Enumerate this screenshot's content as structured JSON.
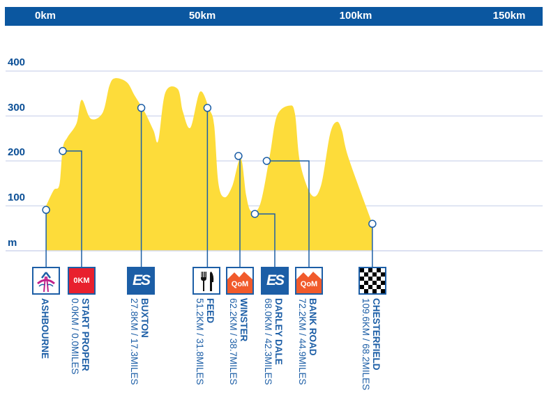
{
  "top_axis": {
    "labels": [
      "0km",
      "50km",
      "100km",
      "150km"
    ],
    "bar_color": "#0b57a0"
  },
  "chart_data": {
    "type": "area",
    "xlabel": "",
    "ylabel": "m",
    "yticks": [
      100,
      200,
      300,
      400
    ],
    "ylim": [
      0,
      420
    ],
    "grid": true,
    "fill_color": "#fddc3a",
    "profile": {
      "distance_km": [
        -5.9,
        -3.2,
        -1.2,
        0,
        1.7,
        4.9,
        6.7,
        9.9,
        14.1,
        16.5,
        18.5,
        22.7,
        25.4,
        28.9,
        32.1,
        33.8,
        36.3,
        40.7,
        42.5,
        45.2,
        48.6,
        51.9,
        53.6,
        55.1,
        57.3,
        60,
        63,
        64.9,
        66.7,
        69.9,
        73.3,
        75.8,
        80.2,
        82.2,
        84,
        88.1,
        91.4,
        94.6,
        97,
        98.8,
        101.2,
        109.6
      ],
      "elevation_m": [
        100,
        135,
        147,
        228,
        253,
        284,
        336,
        294,
        307,
        367,
        384,
        375,
        346,
        310,
        268,
        245,
        352,
        360,
        310,
        274,
        354,
        315,
        279,
        150,
        119,
        144,
        206,
        124,
        88,
        104,
        212,
        300,
        323,
        305,
        196,
        124,
        145,
        259,
        287,
        268,
        206,
        60
      ]
    },
    "waypoints": [
      {
        "name": "ASHBOURNE",
        "detail": "",
        "icon": "ashbourne-logo-icon",
        "km": -5.9,
        "elevation_m": 91
      },
      {
        "name": "START PROPER",
        "detail": "0.0KM / 0.0MILES",
        "icon": "start-0km-icon",
        "icon_text": "0KM",
        "km": 0,
        "elevation_m": 222
      },
      {
        "name": "BUXTON",
        "detail": "27.8KM / 17.3MILES",
        "icon": "sprint-icon",
        "icon_text": "ES",
        "km": 27.8,
        "elevation_m": 318
      },
      {
        "name": "FEED",
        "detail": "51.2KM / 31.8MILES",
        "icon": "feed-fork-knife-icon",
        "km": 51.2,
        "elevation_m": 318
      },
      {
        "name": "WINSTER",
        "detail": "62.2KM / 38.7MILES",
        "icon": "qom-mountain-icon",
        "icon_text": "QoM",
        "km": 62.2,
        "elevation_m": 211
      },
      {
        "name": "DARLEY DALE",
        "detail": "68.0KM / 42.3MILES",
        "icon": "sprint-icon",
        "icon_text": "ES",
        "km": 68.0,
        "elevation_m": 82
      },
      {
        "name": "BANK ROAD",
        "detail": "72.2KM / 44.9MILES",
        "icon": "qom-mountain-icon",
        "icon_text": "QoM",
        "km": 72.2,
        "elevation_m": 200
      },
      {
        "name": "CHESTERFIELD",
        "detail": "109.6KM / 68.2MILES",
        "icon": "finish-checkered-flag-icon",
        "km": 109.6,
        "elevation_m": 60
      }
    ],
    "colors": {
      "text": "#1c5ea6",
      "start": "#e8202e",
      "sprint": "#1c5ea6",
      "qom": "#f15a2b"
    }
  }
}
